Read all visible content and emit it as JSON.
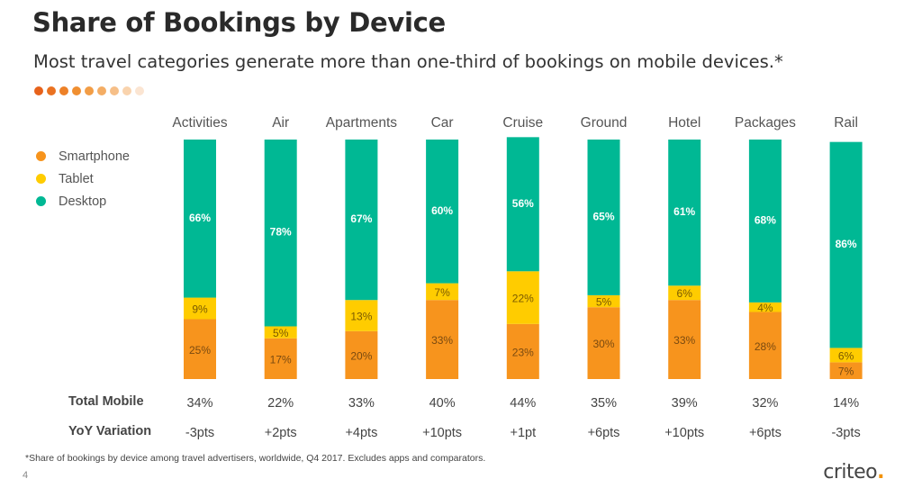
{
  "title": "Share of Bookings by Device",
  "subtitle": "Most travel categories generate more than one-third of bookings on mobile devices.*",
  "colors": {
    "smartphone": "#f7941d",
    "tablet": "#ffcc00",
    "desktop": "#00b894",
    "dots": [
      "#e7621b",
      "#ea7221",
      "#ed8128",
      "#f08f31",
      "#f29d46",
      "#f4ad64",
      "#f6bf88",
      "#f9d3ad",
      "#fbe5d2"
    ]
  },
  "legend": {
    "items": [
      {
        "label": "Smartphone",
        "color": "#f7941d"
      },
      {
        "label": "Tablet",
        "color": "#ffcc00"
      },
      {
        "label": "Desktop",
        "color": "#00b894"
      }
    ]
  },
  "chart_data": {
    "type": "bar",
    "stacked": true,
    "title": "Share of Bookings by Device",
    "categories": [
      "Activities",
      "Air",
      "Apartments",
      "Car",
      "Cruise",
      "Ground",
      "Hotel",
      "Packages",
      "Rail"
    ],
    "series": [
      {
        "name": "Smartphone",
        "values": [
          25,
          17,
          20,
          33,
          23,
          30,
          33,
          28,
          7
        ]
      },
      {
        "name": "Tablet",
        "values": [
          9,
          5,
          13,
          7,
          22,
          5,
          6,
          4,
          6
        ]
      },
      {
        "name": "Desktop",
        "values": [
          66,
          78,
          67,
          60,
          56,
          65,
          61,
          68,
          86
        ]
      }
    ],
    "ylim": [
      0,
      100
    ],
    "grid": false,
    "legend_position": "left"
  },
  "rows": {
    "total_mobile": {
      "label": "Total Mobile",
      "values": [
        "34%",
        "22%",
        "33%",
        "40%",
        "44%",
        "35%",
        "39%",
        "32%",
        "14%"
      ]
    },
    "yoy": {
      "label": "YoY Variation",
      "values": [
        "-3pts",
        "+2pts",
        "+4pts",
        "+10pts",
        "+1pt",
        "+6pts",
        "+10pts",
        "+6pts",
        "-3pts"
      ]
    }
  },
  "footnote": "*Share of bookings by device among travel advertisers, worldwide, Q4 2017. Excludes apps and comparators.",
  "page_number": "4",
  "brand": {
    "name": "criteo",
    "dot": "."
  }
}
